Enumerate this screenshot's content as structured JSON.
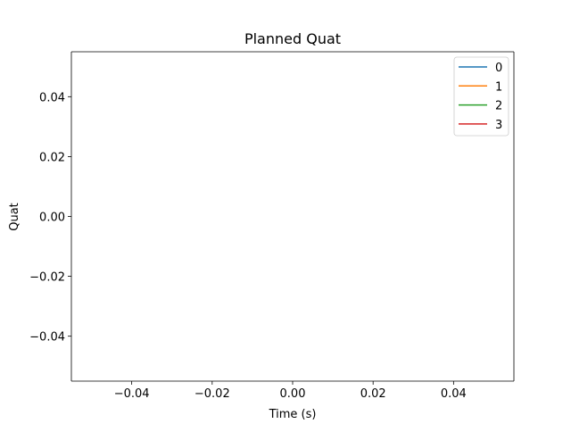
{
  "chart_data": {
    "type": "line",
    "title": "Planned Quat",
    "xlabel": "Time (s)",
    "ylabel": "Quat",
    "xlim": [
      -0.055,
      0.055
    ],
    "ylim": [
      -0.055,
      0.055
    ],
    "xticks": [
      -0.04,
      -0.02,
      0.0,
      0.02,
      0.04
    ],
    "xtick_labels": [
      "−0.04",
      "−0.02",
      "0.00",
      "0.02",
      "0.04"
    ],
    "yticks": [
      0.04,
      0.02,
      0.0,
      -0.02,
      -0.04
    ],
    "ytick_labels": [
      "0.04",
      "0.02",
      "0.00",
      "−0.02",
      "−0.04"
    ],
    "grid": false,
    "legend_position": "top-right",
    "series": [
      {
        "name": "0",
        "color": "#1f77b4",
        "x": [],
        "y": []
      },
      {
        "name": "1",
        "color": "#ff7f0e",
        "x": [],
        "y": []
      },
      {
        "name": "2",
        "color": "#2ca02c",
        "x": [],
        "y": []
      },
      {
        "name": "3",
        "color": "#d62728",
        "x": [],
        "y": []
      }
    ]
  }
}
